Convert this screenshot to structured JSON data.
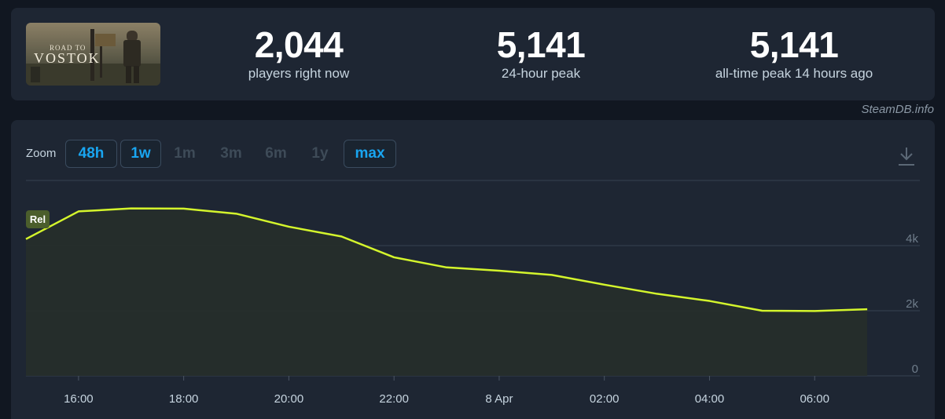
{
  "header": {
    "game_logo_text_line1": "ROAD TO",
    "game_logo_text_line2": "VOSTOK",
    "stats": [
      {
        "value": "2,044",
        "label": "players right now"
      },
      {
        "value": "5,141",
        "label": "24-hour peak"
      },
      {
        "value": "5,141",
        "label": "all-time peak 14 hours ago"
      }
    ]
  },
  "credit": "SteamDB.info",
  "zoom": {
    "label": "Zoom",
    "buttons": [
      {
        "label": "48h",
        "state": "active"
      },
      {
        "label": "1w",
        "state": "active"
      },
      {
        "label": "1m",
        "state": "inactive"
      },
      {
        "label": "3m",
        "state": "inactive"
      },
      {
        "label": "6m",
        "state": "inactive"
      },
      {
        "label": "1y",
        "state": "inactive"
      },
      {
        "label": "max",
        "state": "active"
      }
    ]
  },
  "download_icon": "download-icon",
  "colors": {
    "line": "#d4f52c",
    "active_text": "#19a5f0",
    "marker_bg": "#4b5e2c"
  },
  "chart_data": {
    "type": "area",
    "title": "",
    "xlabel": "",
    "ylabel": "",
    "ylim": [
      0,
      6000
    ],
    "y_ticks": [
      0,
      2000,
      4000
    ],
    "y_tick_labels": [
      "0",
      "2k",
      "4k"
    ],
    "x_ticks": [
      "16:00",
      "18:00",
      "20:00",
      "22:00",
      "8 Apr",
      "02:00",
      "04:00",
      "06:00"
    ],
    "x_tick_hours": [
      16,
      18,
      20,
      22,
      24,
      26,
      28,
      30
    ],
    "x_range_hours": [
      15,
      32
    ],
    "grid": true,
    "series": [
      {
        "points": [
          {
            "hour": 15,
            "players": 4200
          },
          {
            "hour": 16,
            "players": 5050
          },
          {
            "hour": 17,
            "players": 5141
          },
          {
            "hour": 18,
            "players": 5135
          },
          {
            "hour": 19,
            "players": 4980
          },
          {
            "hour": 20,
            "players": 4580
          },
          {
            "hour": 21,
            "players": 4280
          },
          {
            "hour": 22,
            "players": 3640
          },
          {
            "hour": 23,
            "players": 3330
          },
          {
            "hour": 24,
            "players": 3230
          },
          {
            "hour": 25,
            "players": 3100
          },
          {
            "hour": 26,
            "players": 2800
          },
          {
            "hour": 27,
            "players": 2520
          },
          {
            "hour": 28,
            "players": 2300
          },
          {
            "hour": 29,
            "players": 2000
          },
          {
            "hour": 30,
            "players": 1990
          },
          {
            "hour": 31,
            "players": 2044
          }
        ]
      }
    ],
    "annotations": [
      {
        "label": "Rel",
        "hour": 15
      }
    ]
  }
}
